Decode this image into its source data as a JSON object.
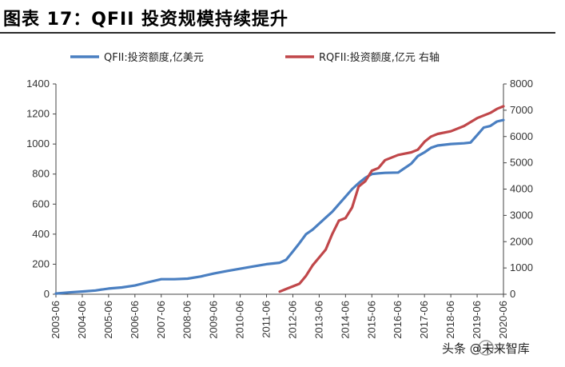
{
  "figure": {
    "title": "图表 17：QFII 投资规模持续提升"
  },
  "watermark": {
    "text": "头条 @未来智库"
  },
  "chart_data": {
    "type": "line",
    "title": "",
    "xlabel": "",
    "ylabel": "",
    "y2label": "",
    "legend_position": "top",
    "grid": false,
    "x_ticks": [
      "2003-06",
      "2004-06",
      "2005-06",
      "2006-06",
      "2007-06",
      "2008-06",
      "2009-06",
      "2010-06",
      "2011-06",
      "2012-06",
      "2013-06",
      "2014-06",
      "2015-06",
      "2016-06",
      "2017-06",
      "2018-06",
      "2019-06",
      "2020-06"
    ],
    "y_ticks": [
      0,
      200,
      400,
      600,
      800,
      1000,
      1200,
      1400
    ],
    "y2_ticks": [
      0,
      1000,
      2000,
      3000,
      4000,
      5000,
      6000,
      7000,
      8000
    ],
    "ylim": [
      0,
      1400
    ],
    "y2lim": [
      0,
      8000
    ],
    "series": [
      {
        "name": "QFII:投资额度,亿美元",
        "axis": "left",
        "color": "#4a7fc1",
        "x": [
          "2003-06",
          "2003-12",
          "2004-06",
          "2004-12",
          "2005-06",
          "2005-12",
          "2006-06",
          "2006-12",
          "2007-06",
          "2007-12",
          "2008-06",
          "2008-12",
          "2009-06",
          "2009-12",
          "2010-06",
          "2010-12",
          "2011-06",
          "2011-12",
          "2012-03",
          "2012-06",
          "2012-09",
          "2012-12",
          "2013-03",
          "2013-06",
          "2013-09",
          "2013-12",
          "2014-03",
          "2014-06",
          "2014-09",
          "2014-12",
          "2015-03",
          "2015-06",
          "2015-09",
          "2015-12",
          "2016-06",
          "2016-12",
          "2017-03",
          "2017-06",
          "2017-09",
          "2017-12",
          "2018-06",
          "2018-12",
          "2019-03",
          "2019-06",
          "2019-09",
          "2019-12",
          "2020-03",
          "2020-06"
        ],
        "values": [
          5,
          12,
          18,
          25,
          38,
          45,
          58,
          80,
          100,
          100,
          104,
          118,
          138,
          155,
          170,
          185,
          200,
          210,
          230,
          285,
          340,
          400,
          430,
          470,
          510,
          550,
          600,
          650,
          700,
          740,
          775,
          800,
          805,
          808,
          810,
          870,
          920,
          945,
          975,
          990,
          1000,
          1005,
          1010,
          1060,
          1110,
          1120,
          1150,
          1160
        ]
      },
      {
        "name": "RQFII:投资额度,亿元 右轴",
        "axis": "right",
        "color": "#c0474a",
        "x": [
          "2011-12",
          "2012-03",
          "2012-06",
          "2012-09",
          "2012-12",
          "2013-03",
          "2013-06",
          "2013-09",
          "2013-12",
          "2014-03",
          "2014-06",
          "2014-09",
          "2014-12",
          "2015-03",
          "2015-06",
          "2015-09",
          "2015-12",
          "2016-06",
          "2016-12",
          "2017-03",
          "2017-06",
          "2017-09",
          "2017-12",
          "2018-06",
          "2018-12",
          "2019-06",
          "2019-12",
          "2020-03",
          "2020-06"
        ],
        "values": [
          100,
          200,
          300,
          400,
          700,
          1100,
          1400,
          1700,
          2300,
          2800,
          2900,
          3300,
          4100,
          4300,
          4700,
          4800,
          5100,
          5300,
          5400,
          5500,
          5800,
          6000,
          6100,
          6200,
          6400,
          6700,
          6900,
          7050,
          7150
        ]
      }
    ]
  }
}
